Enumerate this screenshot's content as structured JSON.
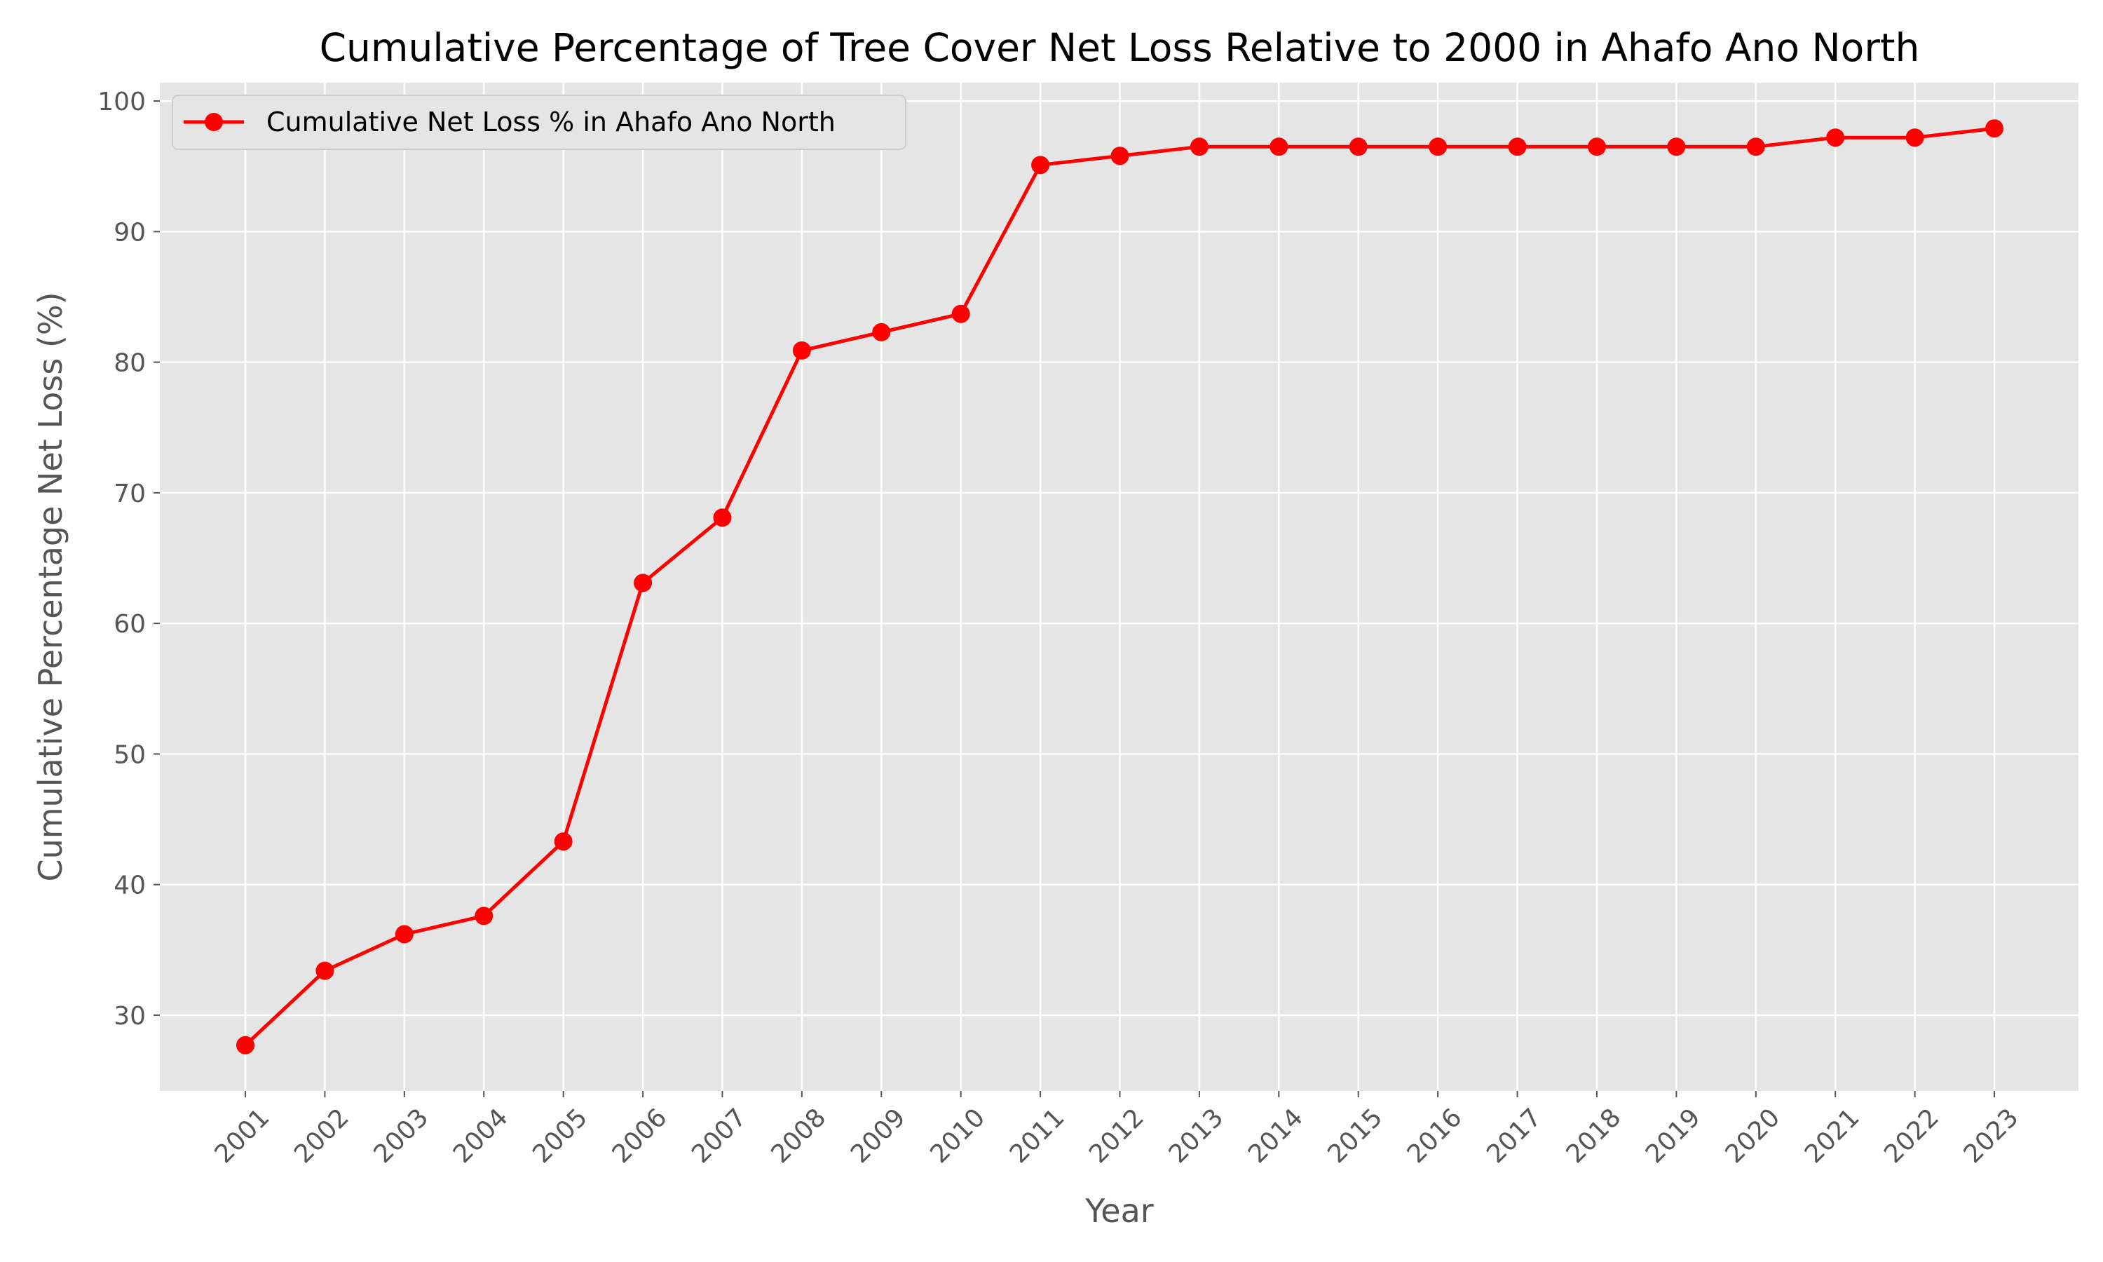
{
  "chart_data": {
    "type": "line",
    "title": "Cumulative Percentage of Tree Cover Net Loss Relative to 2000 in Ahafo Ano North",
    "xlabel": "Year",
    "ylabel": "Cumulative Percentage Net Loss (%)",
    "categories": [
      "2001",
      "2002",
      "2003",
      "2004",
      "2005",
      "2006",
      "2007",
      "2008",
      "2009",
      "2010",
      "2011",
      "2012",
      "2013",
      "2014",
      "2015",
      "2016",
      "2017",
      "2018",
      "2019",
      "2020",
      "2021",
      "2022",
      "2023"
    ],
    "series": [
      {
        "name": "Cumulative Net Loss % in Ahafo Ano North",
        "values": [
          27.7,
          33.4,
          36.2,
          37.6,
          43.3,
          63.1,
          68.1,
          80.9,
          82.3,
          83.7,
          95.1,
          95.8,
          96.5,
          96.5,
          96.5,
          96.5,
          96.5,
          96.5,
          96.5,
          96.5,
          97.2,
          97.2,
          97.9
        ],
        "color": "#ff0000",
        "marker": "circle"
      }
    ],
    "ylim": [
      24.2,
      101.4
    ],
    "yticks": [
      30,
      40,
      50,
      60,
      70,
      80,
      90,
      100
    ],
    "grid": true,
    "legend_position": "upper-left",
    "x_tick_rotation": "45 degrees",
    "colors": {
      "plot_background": "#e5e5e5",
      "grid": "#ffffff",
      "line": "#ff0000",
      "axis_text": "#555555"
    }
  }
}
